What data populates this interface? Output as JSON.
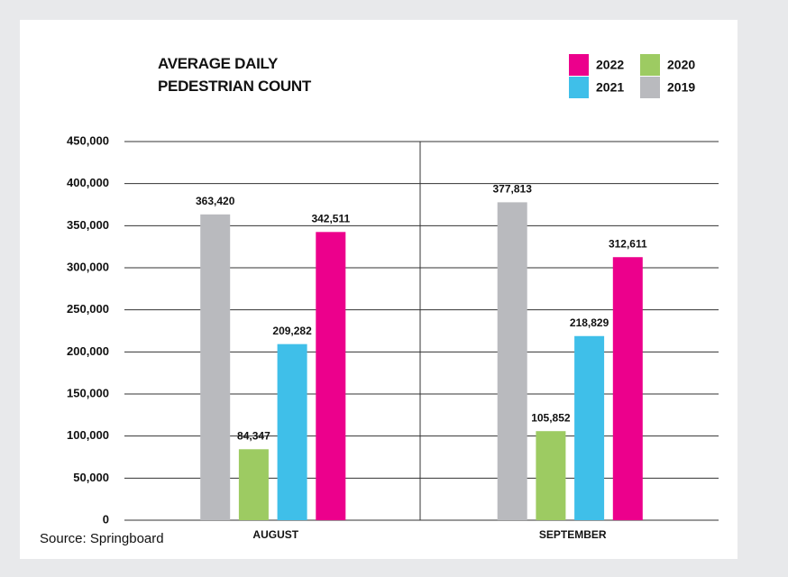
{
  "chart_data": {
    "type": "bar",
    "title": "AVERAGE DAILY\nPEDESTRIAN COUNT",
    "source": "Source: Springboard",
    "categories": [
      "AUGUST",
      "SEPTEMBER"
    ],
    "series": [
      {
        "name": "2019",
        "color": "#b9babe",
        "values": [
          363420,
          377813
        ],
        "value_labels": [
          "363,420",
          "377,813"
        ]
      },
      {
        "name": "2020",
        "color": "#9dcb62",
        "values": [
          84347,
          105852
        ],
        "value_labels": [
          "84,347",
          "105,852"
        ]
      },
      {
        "name": "2021",
        "color": "#3fbfe9",
        "values": [
          209282,
          218829
        ],
        "value_labels": [
          "209,282",
          "218,829"
        ]
      },
      {
        "name": "2022",
        "color": "#ec008c",
        "values": [
          342511,
          312611
        ],
        "value_labels": [
          "342,511",
          "312,611"
        ]
      }
    ],
    "ylim": [
      0,
      450000
    ],
    "yticks": [
      0,
      {
        "value": 50000,
        "label": "50,000"
      },
      {
        "value": 100000,
        "label": "100,000"
      },
      {
        "value": 150000,
        "label": "150,000"
      },
      {
        "value": 200000,
        "label": "200,000"
      },
      {
        "value": 250000,
        "label": "250,000"
      },
      {
        "value": 300000,
        "label": "300,000"
      },
      {
        "value": 350000,
        "label": "350,000"
      },
      {
        "value": 400000,
        "label": "400,000"
      },
      {
        "value": 450000,
        "label": "450,000"
      }
    ],
    "grid": true
  }
}
